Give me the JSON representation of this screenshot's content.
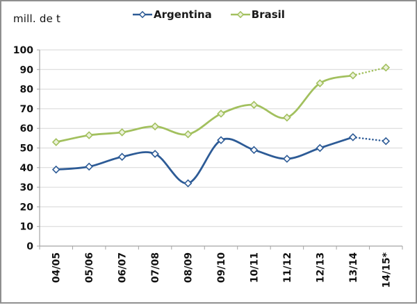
{
  "window": {
    "background": "#ffffff",
    "border_color": "#8f8f8f"
  },
  "chart_data": {
    "type": "line",
    "title": "",
    "unit_label": "mill. de t",
    "xlabel": "",
    "ylabel": "mill. de t",
    "categories": [
      "04/05",
      "05/06",
      "06/07",
      "07/08",
      "08/09",
      "09/10",
      "10/11",
      "11/12",
      "12/13",
      "13/14",
      "14/15*"
    ],
    "series": [
      {
        "name": "Argentina",
        "color": "#2d5b96",
        "marker": "diamond",
        "marker_fill": "#ffffff",
        "values": [
          39,
          40.5,
          45.5,
          47,
          32,
          54,
          49,
          44.5,
          50,
          55.5,
          53.5
        ],
        "dotted_from_index": 9
      },
      {
        "name": "Brasil",
        "color": "#a2c05e",
        "marker": "diamond",
        "marker_fill": "#ecf2db",
        "values": [
          53,
          56.5,
          58,
          61,
          57,
          67.5,
          72,
          65.5,
          83,
          87,
          91
        ],
        "dotted_from_index": 9
      }
    ],
    "ylim": [
      0,
      100
    ],
    "ytick_step": 10,
    "ytick_labels": [
      "0",
      "10",
      "20",
      "30",
      "40",
      "50",
      "60",
      "70",
      "80",
      "90",
      "100"
    ],
    "grid": "horizontal",
    "legend_position": "top-center",
    "grid_color": "#d6d6d6",
    "axis_color": "#a3a3a3",
    "text_color": "#111111",
    "line_style_note": "last segment (13/14 to 14/15*) dotted for both series"
  }
}
